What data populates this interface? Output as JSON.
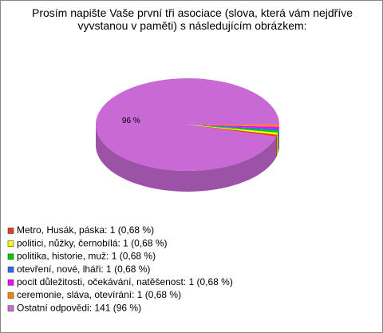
{
  "chart_data": {
    "type": "pie",
    "title": "Prosím napište Vaše první tři asociace (slova, která vám nejdříve vyvstanou v paměti) s následujícím obrázkem:",
    "categories": [
      "Metro, Husák, páska: 1 (0,68 %)",
      "politici, nůžky, černobílá: 1 (0,68 %)",
      "politika, historie, muž: 1 (0,68 %)",
      "otevření, nové, lháři: 1 (0,68 %)",
      "pocit důležitosti, očekávání, natěšenost: 1 (0,68 %)",
      "ceremonie, sláva, otevírání: 1 (0,68 %)",
      "Ostatní odpovědi: 141 (96 %)"
    ],
    "values": [
      1,
      1,
      1,
      1,
      1,
      1,
      141
    ],
    "value_labels": [
      null,
      null,
      null,
      null,
      null,
      null,
      "96 %"
    ],
    "colors": [
      "#e63c1e",
      "#ffff00",
      "#00cc00",
      "#3366ff",
      "#ff00ff",
      "#ff8000",
      "#c869d6"
    ]
  }
}
